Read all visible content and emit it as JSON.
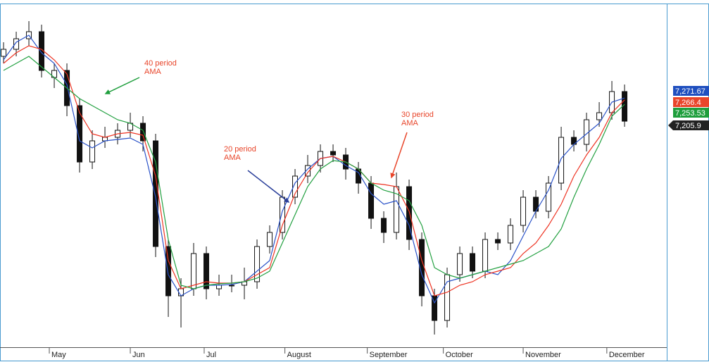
{
  "chart_data": {
    "type": "candlestick",
    "x": [
      0,
      1,
      2,
      3,
      4,
      5,
      6,
      7,
      8,
      9,
      10,
      11,
      12,
      13,
      14,
      15,
      16,
      17,
      18,
      19,
      20,
      21,
      22,
      23,
      24,
      25,
      26,
      27,
      28,
      29,
      30,
      31,
      32,
      33,
      34,
      35,
      36,
      37,
      38,
      39,
      40,
      41,
      42,
      43,
      44,
      45,
      46,
      47,
      48,
      49
    ],
    "xlim": [
      -0.28,
      52.33
    ],
    "ylim": [
      6570,
      7540
    ],
    "xticks": [
      {
        "value": 3.61,
        "label": "May"
      },
      {
        "value": 10,
        "label": "Jun"
      },
      {
        "value": 15.83,
        "label": "Jul"
      },
      {
        "value": 22.2,
        "label": "August"
      },
      {
        "value": 28.7,
        "label": "September"
      },
      {
        "value": 34.7,
        "label": "October"
      },
      {
        "value": 41,
        "label": "November"
      },
      {
        "value": 47.6,
        "label": "December"
      }
    ],
    "candles": {
      "open": [
        7390,
        7410,
        7440,
        7460,
        7330,
        7350,
        7250,
        7090,
        7150,
        7160,
        7180,
        7200,
        7150,
        6850,
        6710,
        6730,
        6830,
        6730,
        6740,
        6740,
        6750,
        6850,
        6890,
        6990,
        7050,
        7080,
        7120,
        7110,
        7070,
        7030,
        6930,
        6890,
        7020,
        6870,
        6710,
        6640,
        6770,
        6830,
        6780,
        6870,
        6860,
        6910,
        6990,
        6950,
        7030,
        7160,
        7140,
        7210,
        7230,
        7290
      ],
      "high": [
        7430,
        7460,
        7490,
        7480,
        7370,
        7370,
        7270,
        7180,
        7190,
        7200,
        7230,
        7220,
        7170,
        6870,
        6760,
        6860,
        6850,
        6770,
        6770,
        6790,
        6870,
        6910,
        7010,
        7070,
        7110,
        7140,
        7140,
        7130,
        7090,
        7050,
        6950,
        7060,
        7040,
        6890,
        6730,
        6790,
        6850,
        6850,
        6890,
        6890,
        6930,
        7010,
        7010,
        7050,
        7190,
        7180,
        7230,
        7260,
        7320,
        7310
      ],
      "low": [
        7370,
        7390,
        7420,
        7330,
        7300,
        7220,
        7060,
        7070,
        7130,
        7140,
        7160,
        7120,
        6820,
        6650,
        6620,
        6710,
        6700,
        6710,
        6720,
        6700,
        6730,
        6830,
        6870,
        6970,
        7030,
        7060,
        7090,
        7040,
        7000,
        6900,
        6860,
        6870,
        6840,
        6680,
        6600,
        6620,
        6750,
        6760,
        6760,
        6840,
        6840,
        6890,
        6930,
        6930,
        7010,
        7120,
        7120,
        7190,
        7210,
        7190
      ],
      "close": [
        7410,
        7440,
        7460,
        7350,
        7350,
        7250,
        7090,
        7150,
        7160,
        7180,
        7200,
        7150,
        6850,
        6710,
        6730,
        6830,
        6730,
        6740,
        6740,
        6750,
        6850,
        6890,
        6990,
        7050,
        7080,
        7120,
        7110,
        7070,
        7030,
        6930,
        6890,
        7020,
        6870,
        6710,
        6640,
        6770,
        6830,
        6780,
        6870,
        6860,
        6910,
        6990,
        6950,
        7030,
        7160,
        7140,
        7210,
        7230,
        7290,
        7205.9
      ],
      "up_color": "#ffffff",
      "down_color": "#111111",
      "last_label": "7,205.9",
      "label_color": "#222222"
    },
    "series": [
      {
        "color": "#2a52c8",
        "label_color": "#1f4fbf",
        "last_label": "7,271.67",
        "values": [
          7380,
          7430,
          7450,
          7400,
          7370,
          7310,
          7150,
          7130,
          7150,
          7154,
          7158,
          7140,
          6990,
          6770,
          6710,
          6730,
          6740,
          6740,
          6742,
          6750,
          6780,
          6810,
          6950,
          7030,
          7070,
          7100,
          7106,
          7080,
          7060,
          7000,
          6970,
          6980,
          6910,
          6770,
          6690,
          6750,
          6760,
          6770,
          6780,
          6770,
          6810,
          6880,
          6950,
          7010,
          7100,
          7140,
          7170,
          7200,
          7260,
          7271.67
        ]
      },
      {
        "color": "#ee3322",
        "label_color": "#e8452a",
        "last_label": "7,266.4",
        "values": [
          7370,
          7400,
          7420,
          7410,
          7380,
          7340,
          7230,
          7170,
          7160,
          7170,
          7174,
          7166,
          7050,
          6810,
          6730,
          6740,
          6750,
          6746,
          6746,
          6750,
          6770,
          6790,
          6910,
          7000,
          7060,
          7100,
          7106,
          7090,
          7070,
          7030,
          7026,
          7020,
          6950,
          6810,
          6710,
          6720,
          6740,
          6750,
          6770,
          6780,
          6790,
          6830,
          6860,
          6910,
          6970,
          7050,
          7110,
          7160,
          7230,
          7266.4
        ]
      },
      {
        "color": "#22a040",
        "label_color": "#1e9e3c",
        "last_label": "7,253.53",
        "values": [
          7350,
          7370,
          7390,
          7360,
          7330,
          7300,
          7270,
          7250,
          7230,
          7210,
          7200,
          7180,
          7090,
          6870,
          6740,
          6730,
          6740,
          6744,
          6746,
          6750,
          6760,
          6780,
          6860,
          6940,
          7020,
          7070,
          7094,
          7090,
          7070,
          7030,
          7010,
          7000,
          6980,
          6910,
          6790,
          6770,
          6760,
          6770,
          6780,
          6790,
          6800,
          6810,
          6830,
          6850,
          6900,
          6990,
          7070,
          7140,
          7220,
          7253.53
        ]
      }
    ],
    "annotations": [
      {
        "lines": [
          "40 period",
          "AMA"
        ],
        "text_color": "#e8452a",
        "arrow_color": "#1e9e3c"
      },
      {
        "lines": [
          "20 period",
          "AMA"
        ],
        "text_color": "#e8452a",
        "arrow_color": "#2a3f9a"
      },
      {
        "lines": [
          "30 period",
          "AMA"
        ],
        "text_color": "#e8452a",
        "arrow_color": "#e8452a"
      }
    ]
  }
}
